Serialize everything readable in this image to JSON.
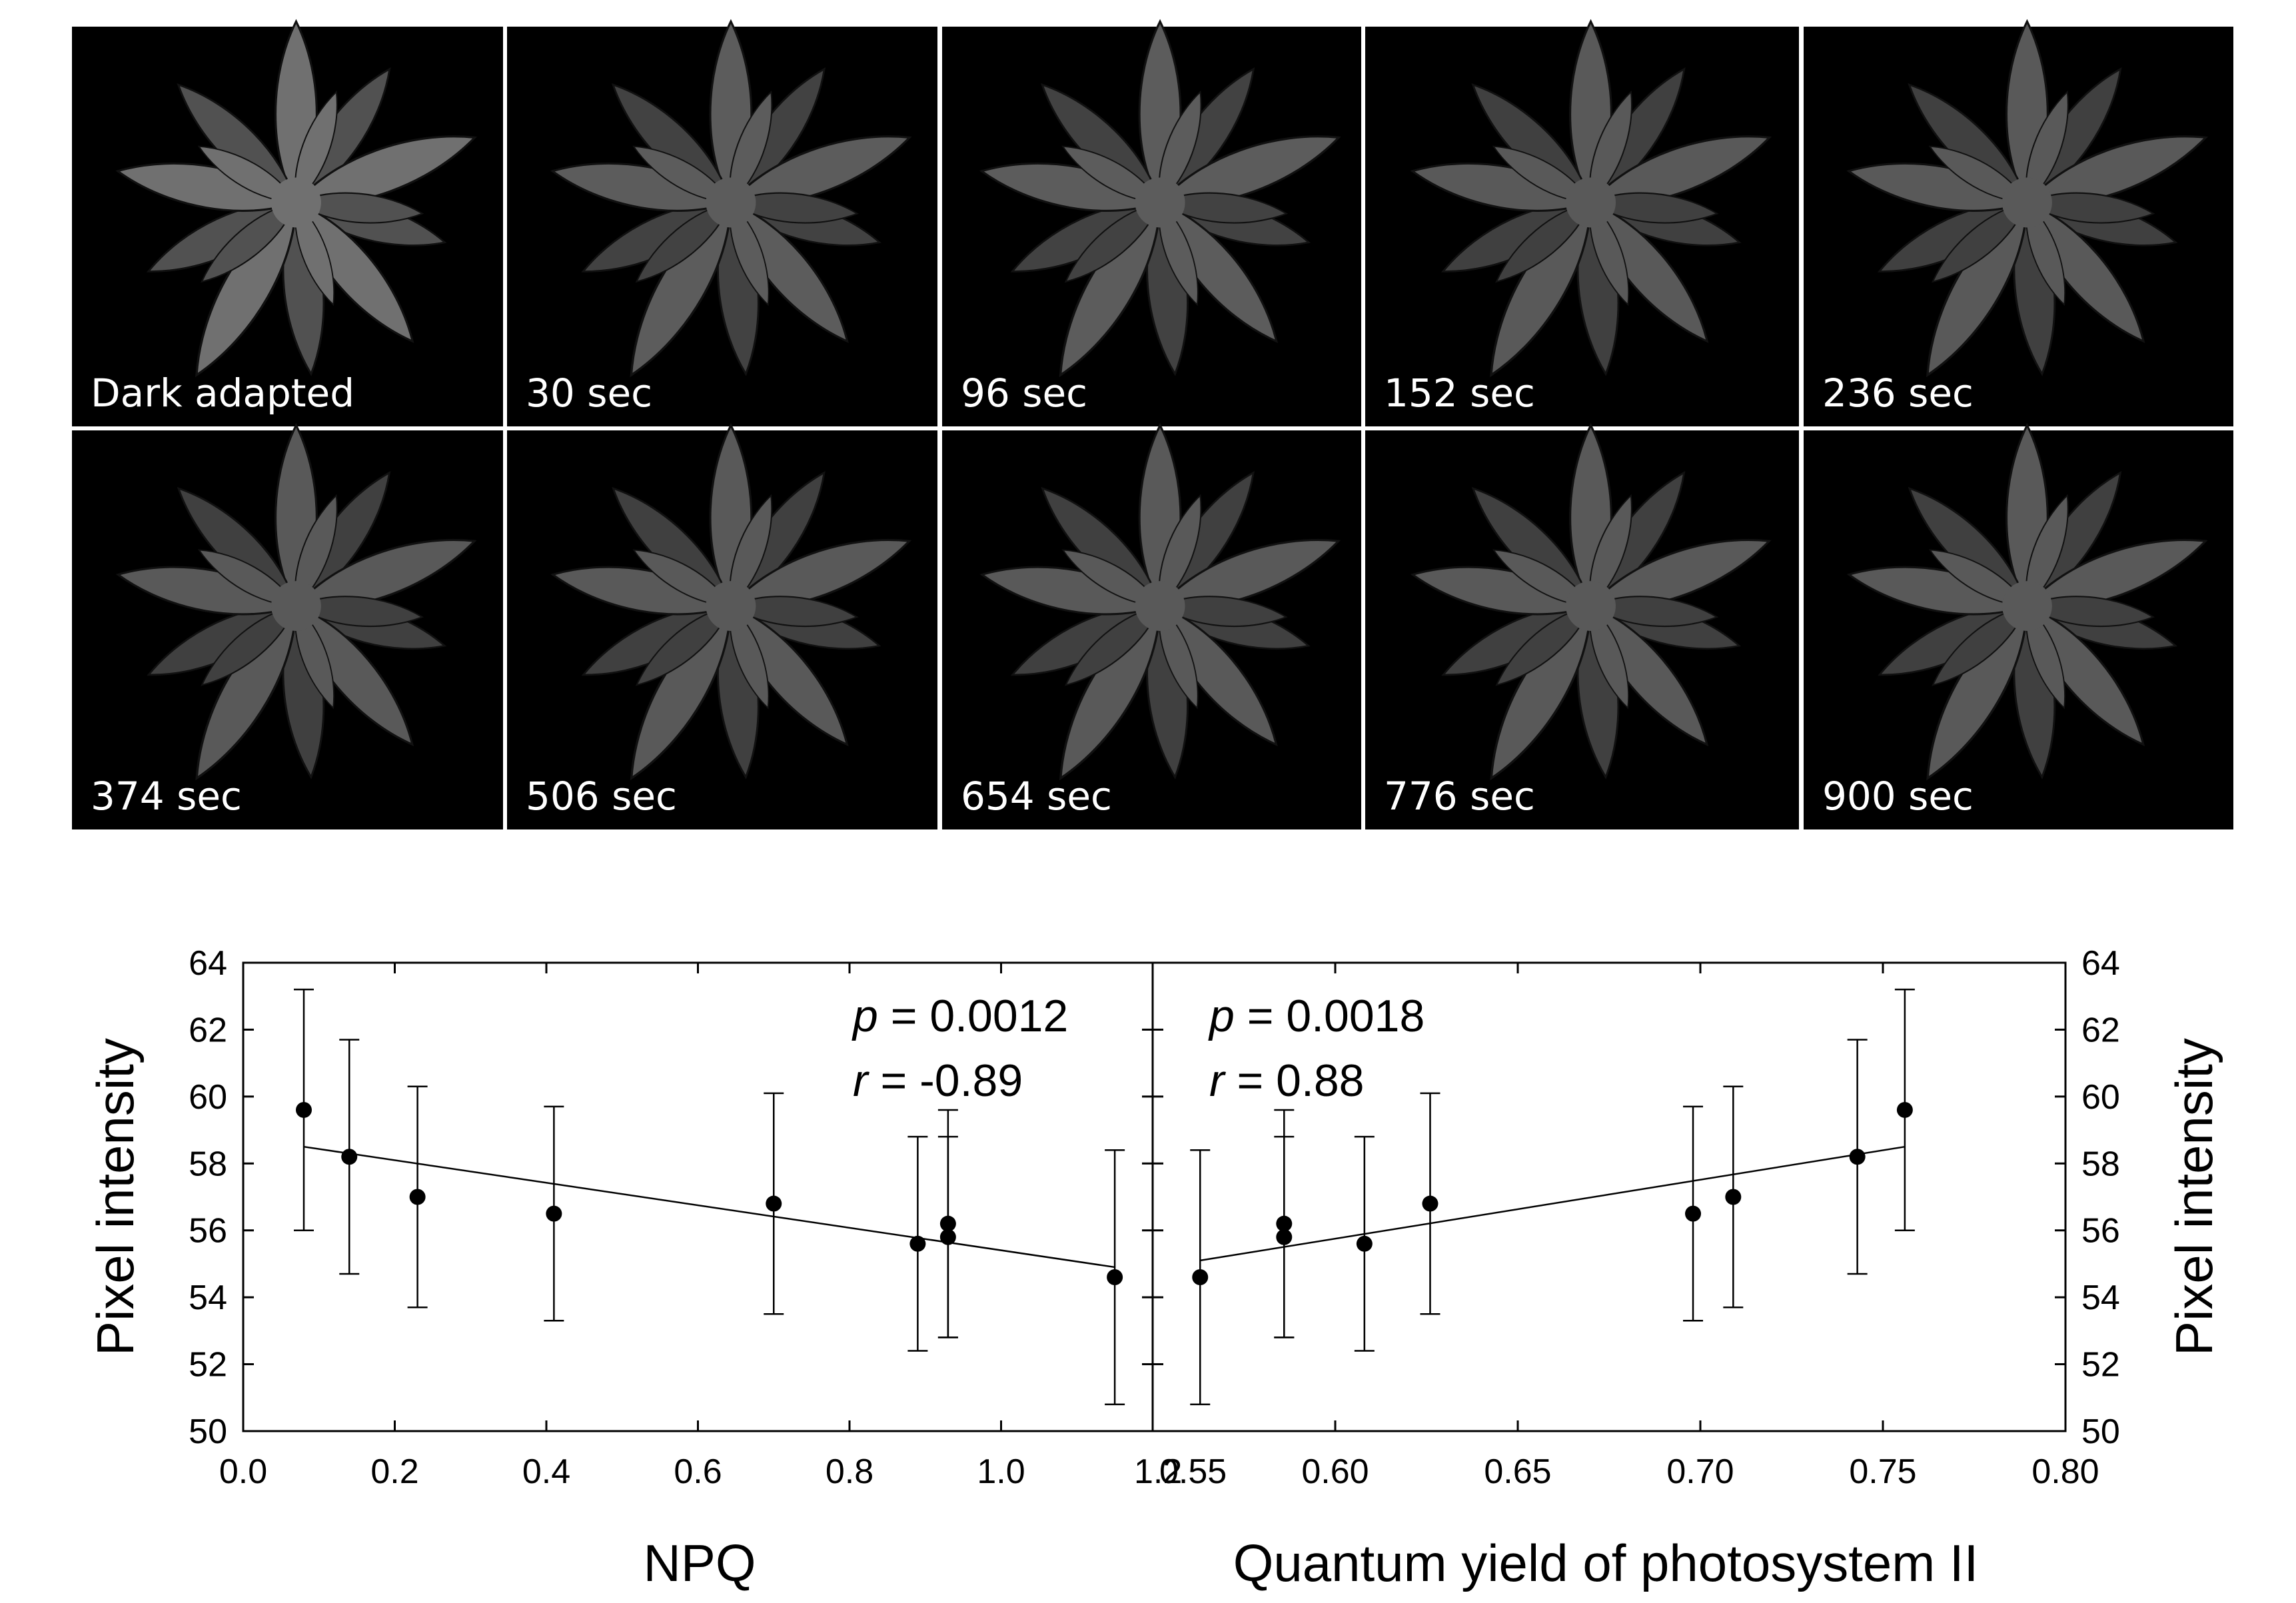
{
  "image_panels": {
    "captions": [
      "Dark adapted",
      "30 sec",
      "96 sec",
      "152 sec",
      "236 sec",
      "374 sec",
      "506 sec",
      "654 sec",
      "776 sec",
      "900 sec"
    ],
    "brightness": [
      0.44,
      0.36,
      0.36,
      0.35,
      0.35,
      0.35,
      0.35,
      0.35,
      0.35,
      0.35
    ]
  },
  "chart_data": [
    {
      "type": "scatter",
      "title": "",
      "xlabel": "NPQ",
      "ylabel": "Pixel intensity",
      "xlim": [
        0.0,
        1.2
      ],
      "ylim": [
        50,
        64
      ],
      "x_ticks": [
        "0.0",
        "0.2",
        "0.4",
        "0.6",
        "0.8",
        "1.0",
        "1.2"
      ],
      "y_ticks": [
        "50",
        "52",
        "54",
        "56",
        "58",
        "60",
        "62",
        "64"
      ],
      "points": [
        {
          "x": 0.08,
          "y": 59.6,
          "err_low": 56.0,
          "err_high": 63.2
        },
        {
          "x": 0.14,
          "y": 58.2,
          "err_low": 54.7,
          "err_high": 61.7
        },
        {
          "x": 0.23,
          "y": 57.0,
          "err_low": 53.7,
          "err_high": 60.3
        },
        {
          "x": 0.41,
          "y": 56.5,
          "err_low": 53.3,
          "err_high": 59.7
        },
        {
          "x": 0.7,
          "y": 56.8,
          "err_low": 53.5,
          "err_high": 60.1
        },
        {
          "x": 0.89,
          "y": 55.6,
          "err_low": 52.4,
          "err_high": 58.8
        },
        {
          "x": 0.93,
          "y": 56.2,
          "err_low": 52.8,
          "err_high": 59.6
        },
        {
          "x": 0.93,
          "y": 55.8,
          "err_low": 52.8,
          "err_high": 58.8
        },
        {
          "x": 1.15,
          "y": 54.6,
          "err_low": 50.8,
          "err_high": 58.4
        }
      ],
      "trendline": {
        "x": [
          0.08,
          1.15
        ],
        "y": [
          58.5,
          54.9
        ]
      },
      "stats": {
        "p_label": "p",
        "p_value": " = 0.0012",
        "r_label": "r",
        "r_value": " = -0.89"
      }
    },
    {
      "type": "scatter",
      "title": "",
      "xlabel": "Quantum yield of photosystem II",
      "ylabel": "Pixel intensity",
      "xlim": [
        0.55,
        0.8
      ],
      "ylim": [
        50,
        64
      ],
      "x_ticks": [
        "0.55",
        "0.60",
        "0.65",
        "0.70",
        "0.75",
        "0.80"
      ],
      "y_ticks": [
        "50",
        "52",
        "54",
        "56",
        "58",
        "60",
        "62",
        "64"
      ],
      "points": [
        {
          "x": 0.563,
          "y": 54.6,
          "err_low": 50.8,
          "err_high": 58.4
        },
        {
          "x": 0.586,
          "y": 56.2,
          "err_low": 52.8,
          "err_high": 59.6
        },
        {
          "x": 0.586,
          "y": 55.8,
          "err_low": 52.8,
          "err_high": 58.8
        },
        {
          "x": 0.608,
          "y": 55.6,
          "err_low": 52.4,
          "err_high": 58.8
        },
        {
          "x": 0.626,
          "y": 56.8,
          "err_low": 53.5,
          "err_high": 60.1
        },
        {
          "x": 0.698,
          "y": 56.5,
          "err_low": 53.3,
          "err_high": 59.7
        },
        {
          "x": 0.709,
          "y": 57.0,
          "err_low": 53.7,
          "err_high": 60.3
        },
        {
          "x": 0.743,
          "y": 58.2,
          "err_low": 54.7,
          "err_high": 61.7
        },
        {
          "x": 0.756,
          "y": 59.6,
          "err_low": 56.0,
          "err_high": 63.2
        }
      ],
      "trendline": {
        "x": [
          0.563,
          0.756
        ],
        "y": [
          55.1,
          58.5
        ]
      },
      "stats": {
        "p_label": "p",
        "p_value": " = 0.0018",
        "r_label": "r",
        "r_value": " = 0.88"
      }
    }
  ]
}
